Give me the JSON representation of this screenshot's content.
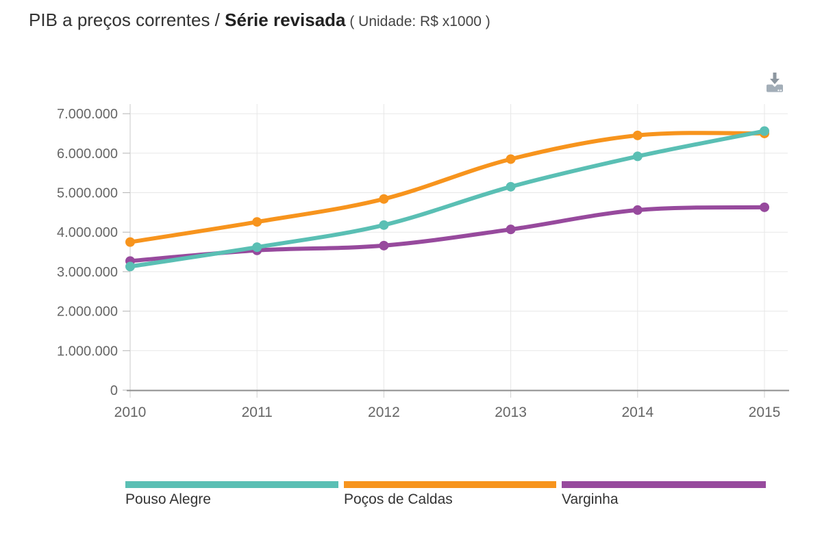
{
  "header": {
    "title_regular": "PIB a preços correntes / ",
    "title_bold": "Série revisada",
    "title_unit": " ( Unidade: R$ x1000 )"
  },
  "toolbar": {
    "download_icon": "download-icon"
  },
  "chart_data": {
    "type": "line",
    "title": "PIB a preços correntes / Série revisada",
    "unit": "R$ x1000",
    "x": [
      2010,
      2011,
      2012,
      2013,
      2014,
      2015
    ],
    "x_tick_labels": [
      "2010",
      "2011",
      "2012",
      "2013",
      "2014",
      "2015"
    ],
    "series": [
      {
        "name": "Pouso Alegre",
        "color": "#5abfb4",
        "values": [
          3130000,
          3620000,
          4180000,
          5150000,
          5920000,
          6560000
        ]
      },
      {
        "name": "Poços de Caldas",
        "color": "#f7941d",
        "values": [
          3750000,
          4260000,
          4840000,
          5850000,
          6450000,
          6500000
        ]
      },
      {
        "name": "Varginha",
        "color": "#974a9d",
        "values": [
          3270000,
          3540000,
          3660000,
          4070000,
          4560000,
          4630000
        ]
      }
    ],
    "ylim": [
      0,
      7000000
    ],
    "y_tick_values": [
      0,
      1000000,
      2000000,
      3000000,
      4000000,
      5000000,
      6000000,
      7000000
    ],
    "y_tick_labels": [
      "0",
      "1.000.000",
      "2.000.000",
      "3.000.000",
      "4.000.000",
      "5.000.000",
      "6.000.000",
      "7.000.000"
    ],
    "grid": true,
    "legend_position": "bottom",
    "marker": "circle"
  }
}
